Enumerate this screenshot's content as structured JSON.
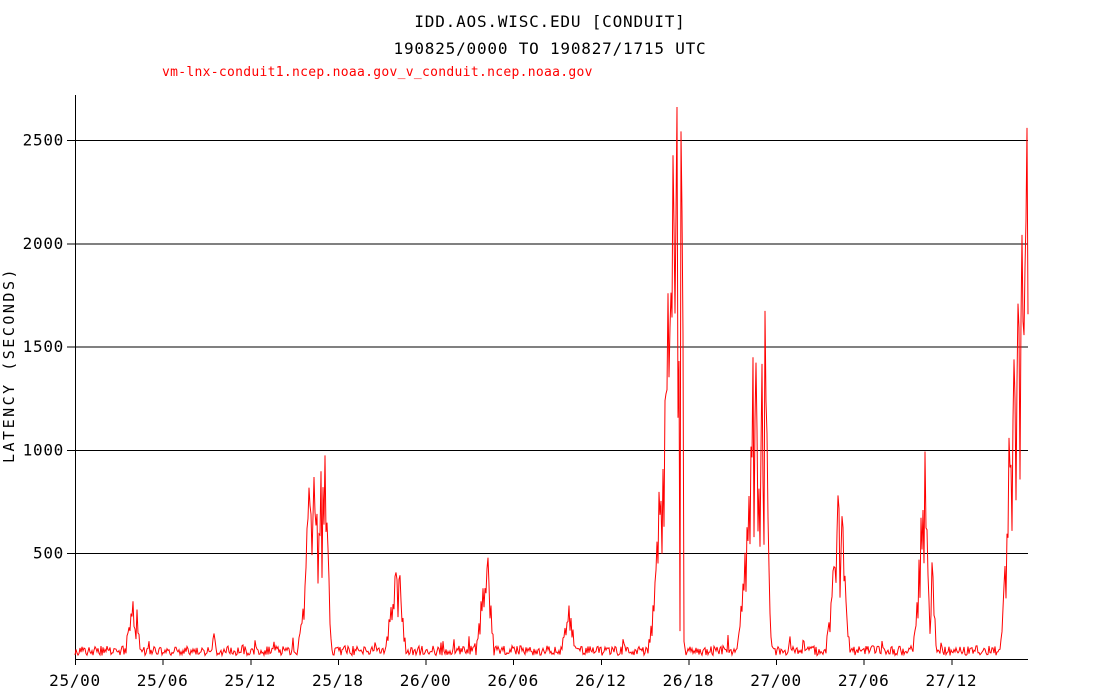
{
  "chart": {
    "title": "IDD.AOS.WISC.EDU [CONDUIT]",
    "subtitle": "190825/0000 TO 190827/1715 UTC",
    "series_label": "vm-lnx-conduit1.ncep.noaa.gov_v_conduit.ncep.noaa.gov",
    "ylabel": "LATENCY (SECONDS)"
  },
  "chart_data": {
    "type": "line",
    "title": "IDD.AOS.WISC.EDU [CONDUIT]",
    "subtitle": "190825/0000 TO 190827/1715 UTC",
    "xlabel": "",
    "ylabel": "LATENCY (SECONDS)",
    "x_unit": "hours since 2019-08-25 00:00 UTC (labels are day/hour UTC)",
    "xlim": [
      0,
      65.25
    ],
    "ylim": [
      0,
      2712
    ],
    "grid": "horizontal",
    "legend_position": "top-left",
    "line_color": "#ff0000",
    "axis_color": "#000000",
    "background_color": "#ffffff",
    "xticks": [
      {
        "hour": 0,
        "label": "25/00"
      },
      {
        "hour": 6,
        "label": "25/06"
      },
      {
        "hour": 12,
        "label": "25/12"
      },
      {
        "hour": 18,
        "label": "25/18"
      },
      {
        "hour": 24,
        "label": "26/00"
      },
      {
        "hour": 30,
        "label": "26/06"
      },
      {
        "hour": 36,
        "label": "26/12"
      },
      {
        "hour": 42,
        "label": "26/18"
      },
      {
        "hour": 48,
        "label": "27/00"
      },
      {
        "hour": 54,
        "label": "27/06"
      },
      {
        "hour": 60,
        "label": "27/12"
      }
    ],
    "yticks": [
      500,
      1000,
      1500,
      2000,
      2500
    ],
    "series": [
      {
        "name": "vm-lnx-conduit1.ncep.noaa.gov_v_conduit.ncep.noaa.gov",
        "style": "noisy per-minute latency trace; values jitter between ~45% and 100% of envelope inside events, baseline noise elsewhere",
        "baseline_seconds": {
          "min": 5,
          "max": 60
        },
        "envelope_keyframes": [
          [
            0.0,
            28
          ],
          [
            3.4,
            28
          ],
          [
            3.6,
            120
          ],
          [
            3.75,
            200
          ],
          [
            3.95,
            285
          ],
          [
            4.1,
            160
          ],
          [
            4.25,
            230
          ],
          [
            4.4,
            100
          ],
          [
            4.6,
            28
          ],
          [
            9.3,
            28
          ],
          [
            9.5,
            115
          ],
          [
            9.7,
            70
          ],
          [
            9.9,
            28
          ],
          [
            15.1,
            28
          ],
          [
            15.4,
            130
          ],
          [
            15.7,
            300
          ],
          [
            15.9,
            680
          ],
          [
            16.05,
            850
          ],
          [
            16.2,
            720
          ],
          [
            16.35,
            880
          ],
          [
            16.5,
            760
          ],
          [
            16.65,
            650
          ],
          [
            16.8,
            920
          ],
          [
            16.95,
            840
          ],
          [
            17.15,
            1000
          ],
          [
            17.3,
            750
          ],
          [
            17.4,
            350
          ],
          [
            17.5,
            120
          ],
          [
            17.65,
            28
          ],
          [
            21.2,
            28
          ],
          [
            21.5,
            190
          ],
          [
            21.75,
            310
          ],
          [
            21.95,
            420
          ],
          [
            22.1,
            350
          ],
          [
            22.25,
            395
          ],
          [
            22.45,
            210
          ],
          [
            22.6,
            110
          ],
          [
            22.75,
            28
          ],
          [
            27.4,
            28
          ],
          [
            27.65,
            160
          ],
          [
            27.85,
            310
          ],
          [
            28.05,
            360
          ],
          [
            28.25,
            500
          ],
          [
            28.4,
            380
          ],
          [
            28.55,
            160
          ],
          [
            28.75,
            28
          ],
          [
            33.2,
            28
          ],
          [
            33.5,
            130
          ],
          [
            33.8,
            255
          ],
          [
            34.0,
            185
          ],
          [
            34.2,
            90
          ],
          [
            34.4,
            28
          ],
          [
            39.1,
            28
          ],
          [
            39.35,
            100
          ],
          [
            39.55,
            230
          ],
          [
            39.7,
            430
          ],
          [
            39.85,
            580
          ],
          [
            40.0,
            820
          ],
          [
            40.1,
            720
          ],
          [
            40.25,
            1080
          ],
          [
            40.4,
            1330
          ],
          [
            40.5,
            1520
          ],
          [
            40.6,
            1760
          ],
          [
            40.7,
            1620
          ],
          [
            40.82,
            2120
          ],
          [
            40.92,
            2480
          ],
          [
            41.0,
            2300
          ],
          [
            41.07,
            2600
          ],
          [
            41.1,
            20
          ],
          [
            41.15,
            2550
          ],
          [
            41.25,
            2712
          ],
          [
            41.33,
            2450
          ],
          [
            41.42,
            20
          ],
          [
            41.48,
            2560
          ],
          [
            41.58,
            2400
          ],
          [
            41.64,
            1500
          ],
          [
            41.7,
            28
          ],
          [
            45.2,
            28
          ],
          [
            45.45,
            110
          ],
          [
            45.65,
            320
          ],
          [
            45.85,
            560
          ],
          [
            46.05,
            720
          ],
          [
            46.25,
            1010
          ],
          [
            46.4,
            1510
          ],
          [
            46.5,
            1220
          ],
          [
            46.65,
            1460
          ],
          [
            46.8,
            920
          ],
          [
            46.95,
            1120
          ],
          [
            47.08,
            1560
          ],
          [
            47.14,
            20
          ],
          [
            47.22,
            1730
          ],
          [
            47.32,
            1480
          ],
          [
            47.42,
            860
          ],
          [
            47.52,
            420
          ],
          [
            47.62,
            130
          ],
          [
            47.72,
            28
          ],
          [
            51.3,
            28
          ],
          [
            51.6,
            160
          ],
          [
            51.85,
            390
          ],
          [
            52.05,
            560
          ],
          [
            52.25,
            790
          ],
          [
            52.4,
            610
          ],
          [
            52.55,
            700
          ],
          [
            52.7,
            460
          ],
          [
            52.85,
            210
          ],
          [
            53.05,
            70
          ],
          [
            53.2,
            28
          ],
          [
            57.3,
            28
          ],
          [
            57.55,
            160
          ],
          [
            57.72,
            410
          ],
          [
            57.88,
            660
          ],
          [
            58.02,
            820
          ],
          [
            58.18,
            1020
          ],
          [
            58.32,
            800
          ],
          [
            58.45,
            310
          ],
          [
            58.58,
            160
          ],
          [
            58.7,
            525
          ],
          [
            58.82,
            300
          ],
          [
            58.95,
            90
          ],
          [
            59.1,
            28
          ],
          [
            63.2,
            28
          ],
          [
            63.45,
            120
          ],
          [
            63.65,
            460
          ],
          [
            63.8,
            720
          ],
          [
            63.95,
            1060
          ],
          [
            64.1,
            1000
          ],
          [
            64.25,
            1460
          ],
          [
            64.4,
            1380
          ],
          [
            64.55,
            1720
          ],
          [
            64.68,
            1620
          ],
          [
            64.82,
            2060
          ],
          [
            64.92,
            1960
          ],
          [
            65.05,
            2220
          ],
          [
            65.18,
            2560
          ],
          [
            65.25,
            2500
          ]
        ]
      }
    ]
  }
}
